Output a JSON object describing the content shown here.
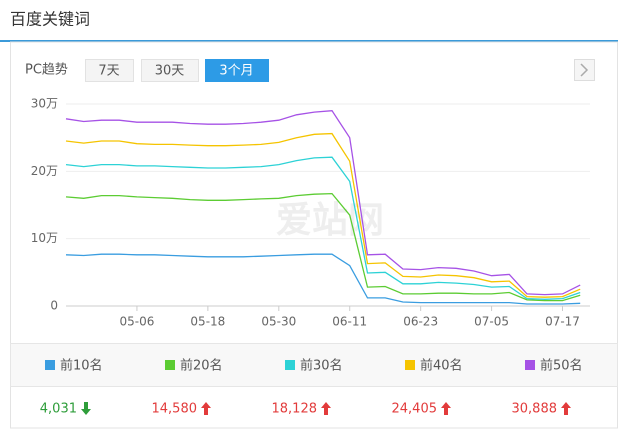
{
  "header": {
    "title": "百度关键词"
  },
  "tabs": {
    "label": "PC趋势",
    "options": [
      "7天",
      "30天",
      "3个月"
    ],
    "active": 2
  },
  "watermark": "爱站网",
  "chart_data": {
    "type": "line",
    "categories": [
      null,
      null,
      null,
      null,
      "05-06",
      null,
      null,
      null,
      "05-18",
      null,
      null,
      null,
      "05-30",
      null,
      null,
      null,
      "06-11",
      null,
      null,
      null,
      "06-23",
      null,
      null,
      null,
      "07-05",
      null,
      null,
      null,
      "07-17",
      null
    ],
    "ylim": [
      0,
      300000
    ],
    "yticks": [
      0,
      {
        "value": 100000,
        "label": "10万"
      },
      {
        "value": 200000,
        "label": "20万"
      },
      {
        "value": 300000,
        "label": "30万"
      }
    ],
    "grid": true,
    "series": [
      {
        "name": "前10名",
        "color": "#3a9de0",
        "values": [
          76000,
          75000,
          77000,
          77000,
          76000,
          76000,
          75000,
          74000,
          73000,
          73000,
          73000,
          74000,
          75000,
          76000,
          77000,
          77000,
          60000,
          12000,
          12000,
          6000,
          5000,
          5000,
          5000,
          5000,
          5000,
          5000,
          3000,
          3000,
          3000,
          4000
        ]
      },
      {
        "name": "前20名",
        "color": "#5ccc33",
        "values": [
          162000,
          160000,
          164000,
          164000,
          162000,
          161000,
          160000,
          158000,
          157000,
          157000,
          158000,
          159000,
          160000,
          164000,
          166000,
          167000,
          135000,
          28000,
          29000,
          18000,
          18000,
          19000,
          19000,
          18000,
          18000,
          20000,
          9000,
          8000,
          8000,
          16000
        ]
      },
      {
        "name": "前30名",
        "color": "#2dd2d6",
        "values": [
          210000,
          207000,
          210000,
          210000,
          208000,
          208000,
          207000,
          206000,
          205000,
          205000,
          206000,
          207000,
          210000,
          216000,
          220000,
          221000,
          185000,
          49000,
          50000,
          33000,
          33000,
          35000,
          34000,
          32000,
          28000,
          29000,
          11000,
          10000,
          11000,
          20000
        ]
      },
      {
        "name": "前40名",
        "color": "#f5c400",
        "values": [
          245000,
          242000,
          245000,
          245000,
          241000,
          240000,
          240000,
          239000,
          238000,
          238000,
          239000,
          240000,
          243000,
          250000,
          255000,
          256000,
          215000,
          63000,
          64000,
          44000,
          43000,
          46000,
          45000,
          42000,
          36000,
          37000,
          14000,
          13000,
          14000,
          25000
        ]
      },
      {
        "name": "前50名",
        "color": "#a652e6",
        "values": [
          278000,
          274000,
          276000,
          276000,
          273000,
          273000,
          273000,
          271000,
          270000,
          270000,
          271000,
          273000,
          276000,
          284000,
          288000,
          290000,
          250000,
          76000,
          77000,
          55000,
          54000,
          57000,
          56000,
          52000,
          45000,
          47000,
          18000,
          17000,
          18000,
          31000
        ]
      }
    ]
  },
  "summary": [
    {
      "value": "4,031",
      "trend": "down"
    },
    {
      "value": "14,580",
      "trend": "up"
    },
    {
      "value": "18,128",
      "trend": "up"
    },
    {
      "value": "24,405",
      "trend": "up"
    },
    {
      "value": "30,888",
      "trend": "up"
    }
  ]
}
